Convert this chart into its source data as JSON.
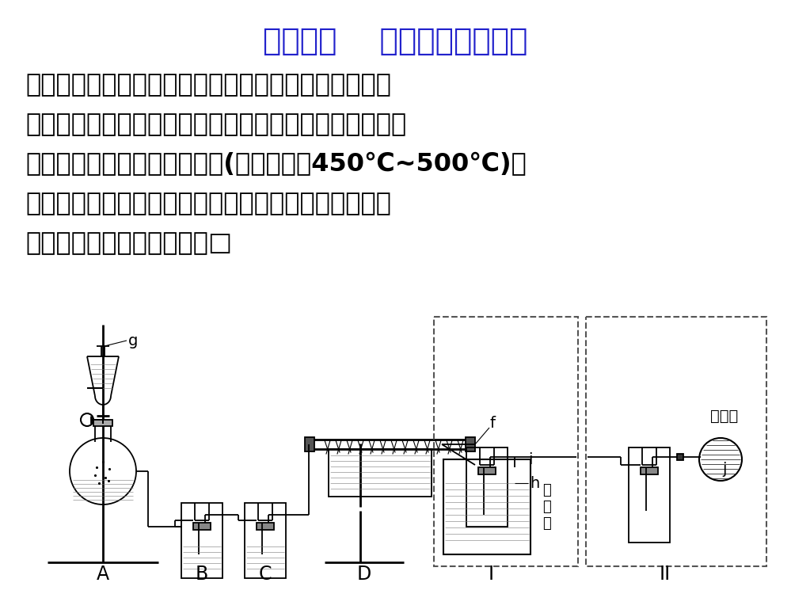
{
  "title": "实验探究    高纯硅的制取实验",
  "title_color": "#2222CC",
  "title_fontsize": 28,
  "body_lines": [
    {
      "text": "单晶硅是信息产业中重要的基础材料。通常用碳在高温",
      "bold_all": true
    },
    {
      "text": "下还原二氧化硅制得粗硅（含铁、铝、硼、磷等杂质），",
      "bold_all": true
    },
    {
      "text": "粗硅与氯气反应生成四氯化硅(反应温度为450℃~500℃)，",
      "bold_all": true
    },
    {
      "text": "四氯化硅经提纯后用氢气还原可得高纯硅。以下是实验",
      "bold_all": true
    },
    {
      "text": "室制备四氯化硅的装置图：□",
      "bold_all": true
    }
  ],
  "body_fontsize": 23,
  "body_color": "#000000",
  "background_color": "#FFFFFF",
  "dashed_box_color": "#555555",
  "lw": 1.3
}
